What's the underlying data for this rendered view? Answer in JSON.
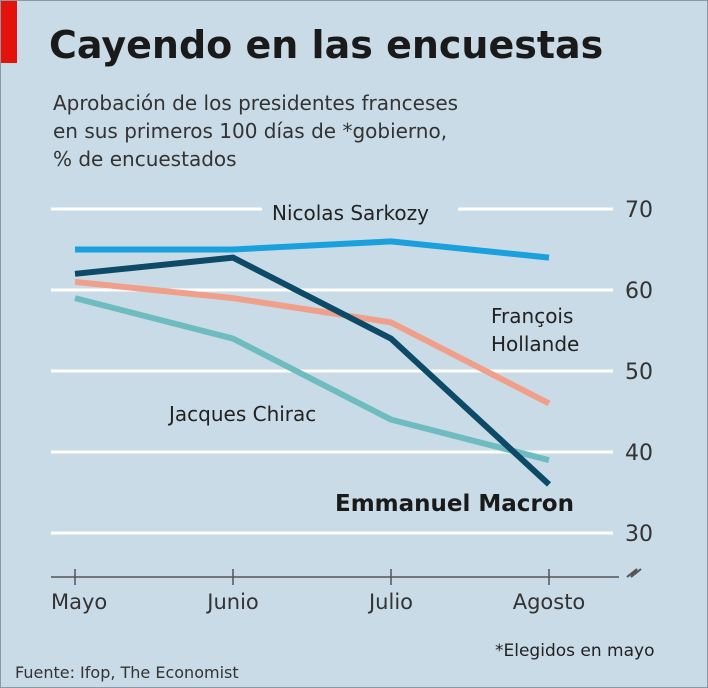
{
  "title": "Cayendo en las encuestas",
  "subtitle_lines": [
    "Aprobación de los presidentes franceses",
    "en sus primeros 100 días de *gobierno,",
    "% de encuestados"
  ],
  "source": "Fuente: Ifop, The Economist",
  "note": "*Elegidos en mayo",
  "colors": {
    "background": "#c9dbe6",
    "brand_red": "#e3120b",
    "sarkozy": "#1aa0dc",
    "macron": "#0d4a68",
    "hollande": "#f0a08a",
    "chirac": "#6fbcc0"
  },
  "chart_data": {
    "type": "line",
    "title": "Cayendo en las encuestas",
    "subtitle": "Aprobación de los presidentes franceses en sus primeros 100 días de *gobierno, % de encuestados",
    "xlabel": "",
    "ylabel": "",
    "categories": [
      "Mayo",
      "Junio",
      "Julio",
      "Agosto"
    ],
    "ylim": [
      30,
      70
    ],
    "yticks": [
      30,
      40,
      50,
      60,
      70
    ],
    "axis_break": true,
    "y_axis_side": "right",
    "grid": true,
    "series": [
      {
        "name": "Nicolas Sarkozy",
        "values": [
          65,
          65,
          66,
          64
        ],
        "color": "#1aa0dc",
        "emphasis": false
      },
      {
        "name": "Emmanuel Macron",
        "values": [
          62,
          64,
          54,
          36
        ],
        "color": "#0d4a68",
        "emphasis": true
      },
      {
        "name": "François Hollande",
        "values": [
          61,
          59,
          56,
          46
        ],
        "color": "#f0a08a",
        "emphasis": false
      },
      {
        "name": "Jacques Chirac",
        "values": [
          59,
          54,
          44,
          39
        ],
        "color": "#6fbcc0",
        "emphasis": false
      }
    ],
    "series_label_lines": {
      "Nicolas Sarkozy": [
        "Nicolas Sarkozy"
      ],
      "Emmanuel Macron": [
        "Emmanuel Macron"
      ],
      "François Hollande": [
        "François",
        "Hollande"
      ],
      "Jacques Chirac": [
        "Jacques Chirac"
      ]
    }
  }
}
